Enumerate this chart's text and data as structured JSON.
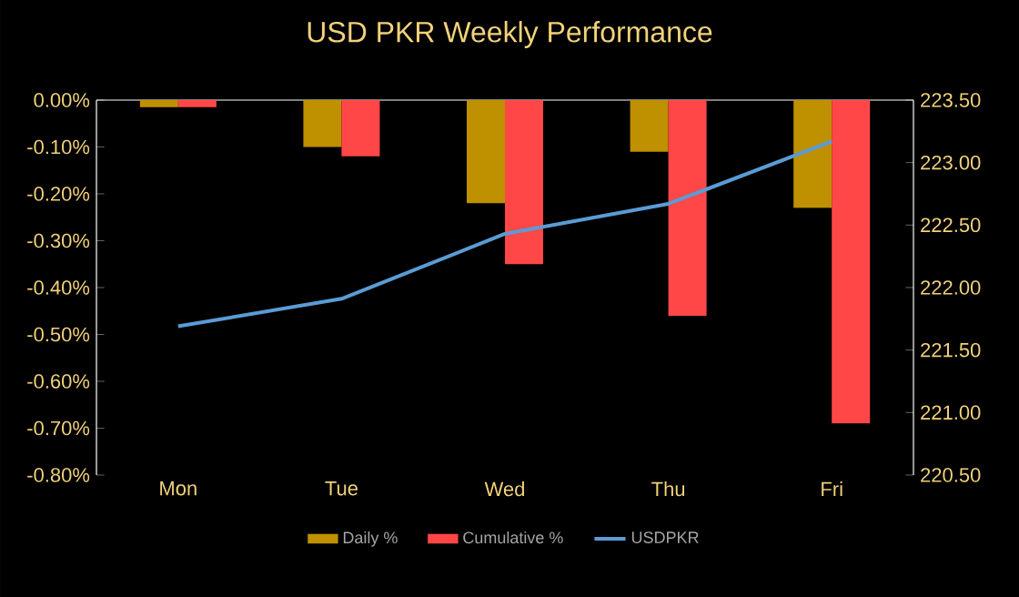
{
  "chart_data": {
    "type": "bar",
    "title": "USD PKR Weekly Performance",
    "categories": [
      "Mon",
      "Tue",
      "Wed",
      "Thu",
      "Fri"
    ],
    "series": [
      {
        "name": "Daily %",
        "color": "#bf9000",
        "values": [
          -0.015,
          -0.1,
          -0.22,
          -0.11,
          -0.23
        ]
      },
      {
        "name": "Cumulative %",
        "color": "#ff4747",
        "values": [
          -0.015,
          -0.12,
          -0.35,
          -0.46,
          -0.69
        ]
      },
      {
        "name": "USDPKR",
        "color": "#5b9bd5",
        "type": "line",
        "axis": "y2",
        "values": [
          221.69,
          221.91,
          222.43,
          222.67,
          223.17
        ]
      }
    ],
    "ylim": [
      -0.8,
      0
    ],
    "yticks": [
      {
        "value": 0,
        "label": "0.00%"
      },
      {
        "value": -0.1,
        "label": "-0.10%"
      },
      {
        "value": -0.2,
        "label": "-0.20%"
      },
      {
        "value": -0.3,
        "label": "-0.30%"
      },
      {
        "value": -0.4,
        "label": "-0.40%"
      },
      {
        "value": -0.5,
        "label": "-0.50%"
      },
      {
        "value": -0.6,
        "label": "-0.60%"
      },
      {
        "value": -0.7,
        "label": "-0.70%"
      },
      {
        "value": -0.8,
        "label": "-0.80%"
      }
    ],
    "y2lim": [
      220.5,
      223.5
    ],
    "y2ticks": [
      {
        "value": 220.5,
        "label": "220.50"
      },
      {
        "value": 221,
        "label": "221.00"
      },
      {
        "value": 221.5,
        "label": "221.50"
      },
      {
        "value": 222,
        "label": "222.00"
      },
      {
        "value": 222.5,
        "label": "222.50"
      },
      {
        "value": 223,
        "label": "223.00"
      },
      {
        "value": 223.5,
        "label": "223.50"
      }
    ],
    "grid": false,
    "legend": "bottom"
  }
}
